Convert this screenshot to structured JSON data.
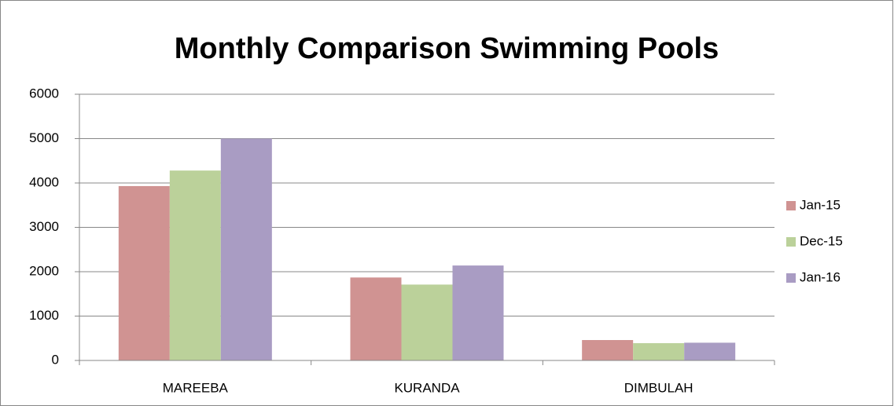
{
  "chart_data": {
    "type": "bar",
    "title": "Monthly Comparison Swimming Pools",
    "categories": [
      "MAREEBA",
      "KURANDA",
      "DIMBULAH"
    ],
    "series": [
      {
        "name": "Jan-15",
        "color": "#d09392",
        "values": [
          3930,
          1870,
          460
        ]
      },
      {
        "name": "Dec-15",
        "color": "#bbd19a",
        "values": [
          4280,
          1710,
          390
        ]
      },
      {
        "name": "Jan-16",
        "color": "#a99cc3",
        "values": [
          5000,
          2140,
          400
        ]
      }
    ],
    "ylim": [
      0,
      6000
    ],
    "yticks": [
      0,
      1000,
      2000,
      3000,
      4000,
      5000,
      6000
    ],
    "grid": true,
    "legend": "right"
  }
}
